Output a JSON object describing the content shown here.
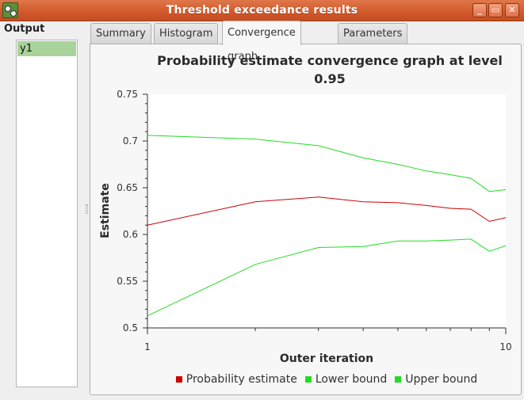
{
  "window": {
    "title": "Threshold exceedance results",
    "icon": "app-icon",
    "buttons": {
      "minimize": "_",
      "maximize": "▭",
      "close": "✕"
    }
  },
  "sidebar": {
    "label": "Output",
    "items": [
      {
        "label": "y1",
        "selected": true
      }
    ]
  },
  "tabs": [
    {
      "label": "Summary",
      "active": false
    },
    {
      "label": "Histogram",
      "active": false
    },
    {
      "label": "Convergence graph",
      "active": true
    },
    {
      "label": "Parameters",
      "active": false
    }
  ],
  "chart_data": {
    "type": "line",
    "title_line1": "Probability estimate convergence graph at level",
    "title_line2": "0.95",
    "xlabel": "Outer iteration",
    "ylabel": "Estimate",
    "x_scale": "log",
    "xlim": [
      1,
      10
    ],
    "ylim": [
      0.5,
      0.75
    ],
    "xticks": [
      1,
      10
    ],
    "xtick_labels": [
      "1",
      "10"
    ],
    "yticks": [
      0.5,
      0.55,
      0.6,
      0.65,
      0.7,
      0.75
    ],
    "ytick_labels": [
      "0.5",
      "0.55",
      "0.6",
      "0.65",
      "0.7",
      "0.75"
    ],
    "grid": false,
    "legend_position": "bottom",
    "x": [
      1,
      2,
      3,
      4,
      5,
      6,
      7,
      8,
      9,
      10
    ],
    "series": [
      {
        "name": "Probability estimate",
        "color": "#cc0000",
        "values": [
          0.61,
          0.635,
          0.64,
          0.635,
          0.634,
          0.631,
          0.628,
          0.627,
          0.614,
          0.618
        ]
      },
      {
        "name": "Lower bound",
        "color": "#22dd22",
        "values": [
          0.513,
          0.568,
          0.586,
          0.587,
          0.593,
          0.593,
          0.594,
          0.595,
          0.582,
          0.588
        ]
      },
      {
        "name": "Upper bound",
        "color": "#22dd22",
        "values": [
          0.706,
          0.702,
          0.695,
          0.682,
          0.675,
          0.668,
          0.664,
          0.66,
          0.646,
          0.648
        ]
      }
    ]
  }
}
